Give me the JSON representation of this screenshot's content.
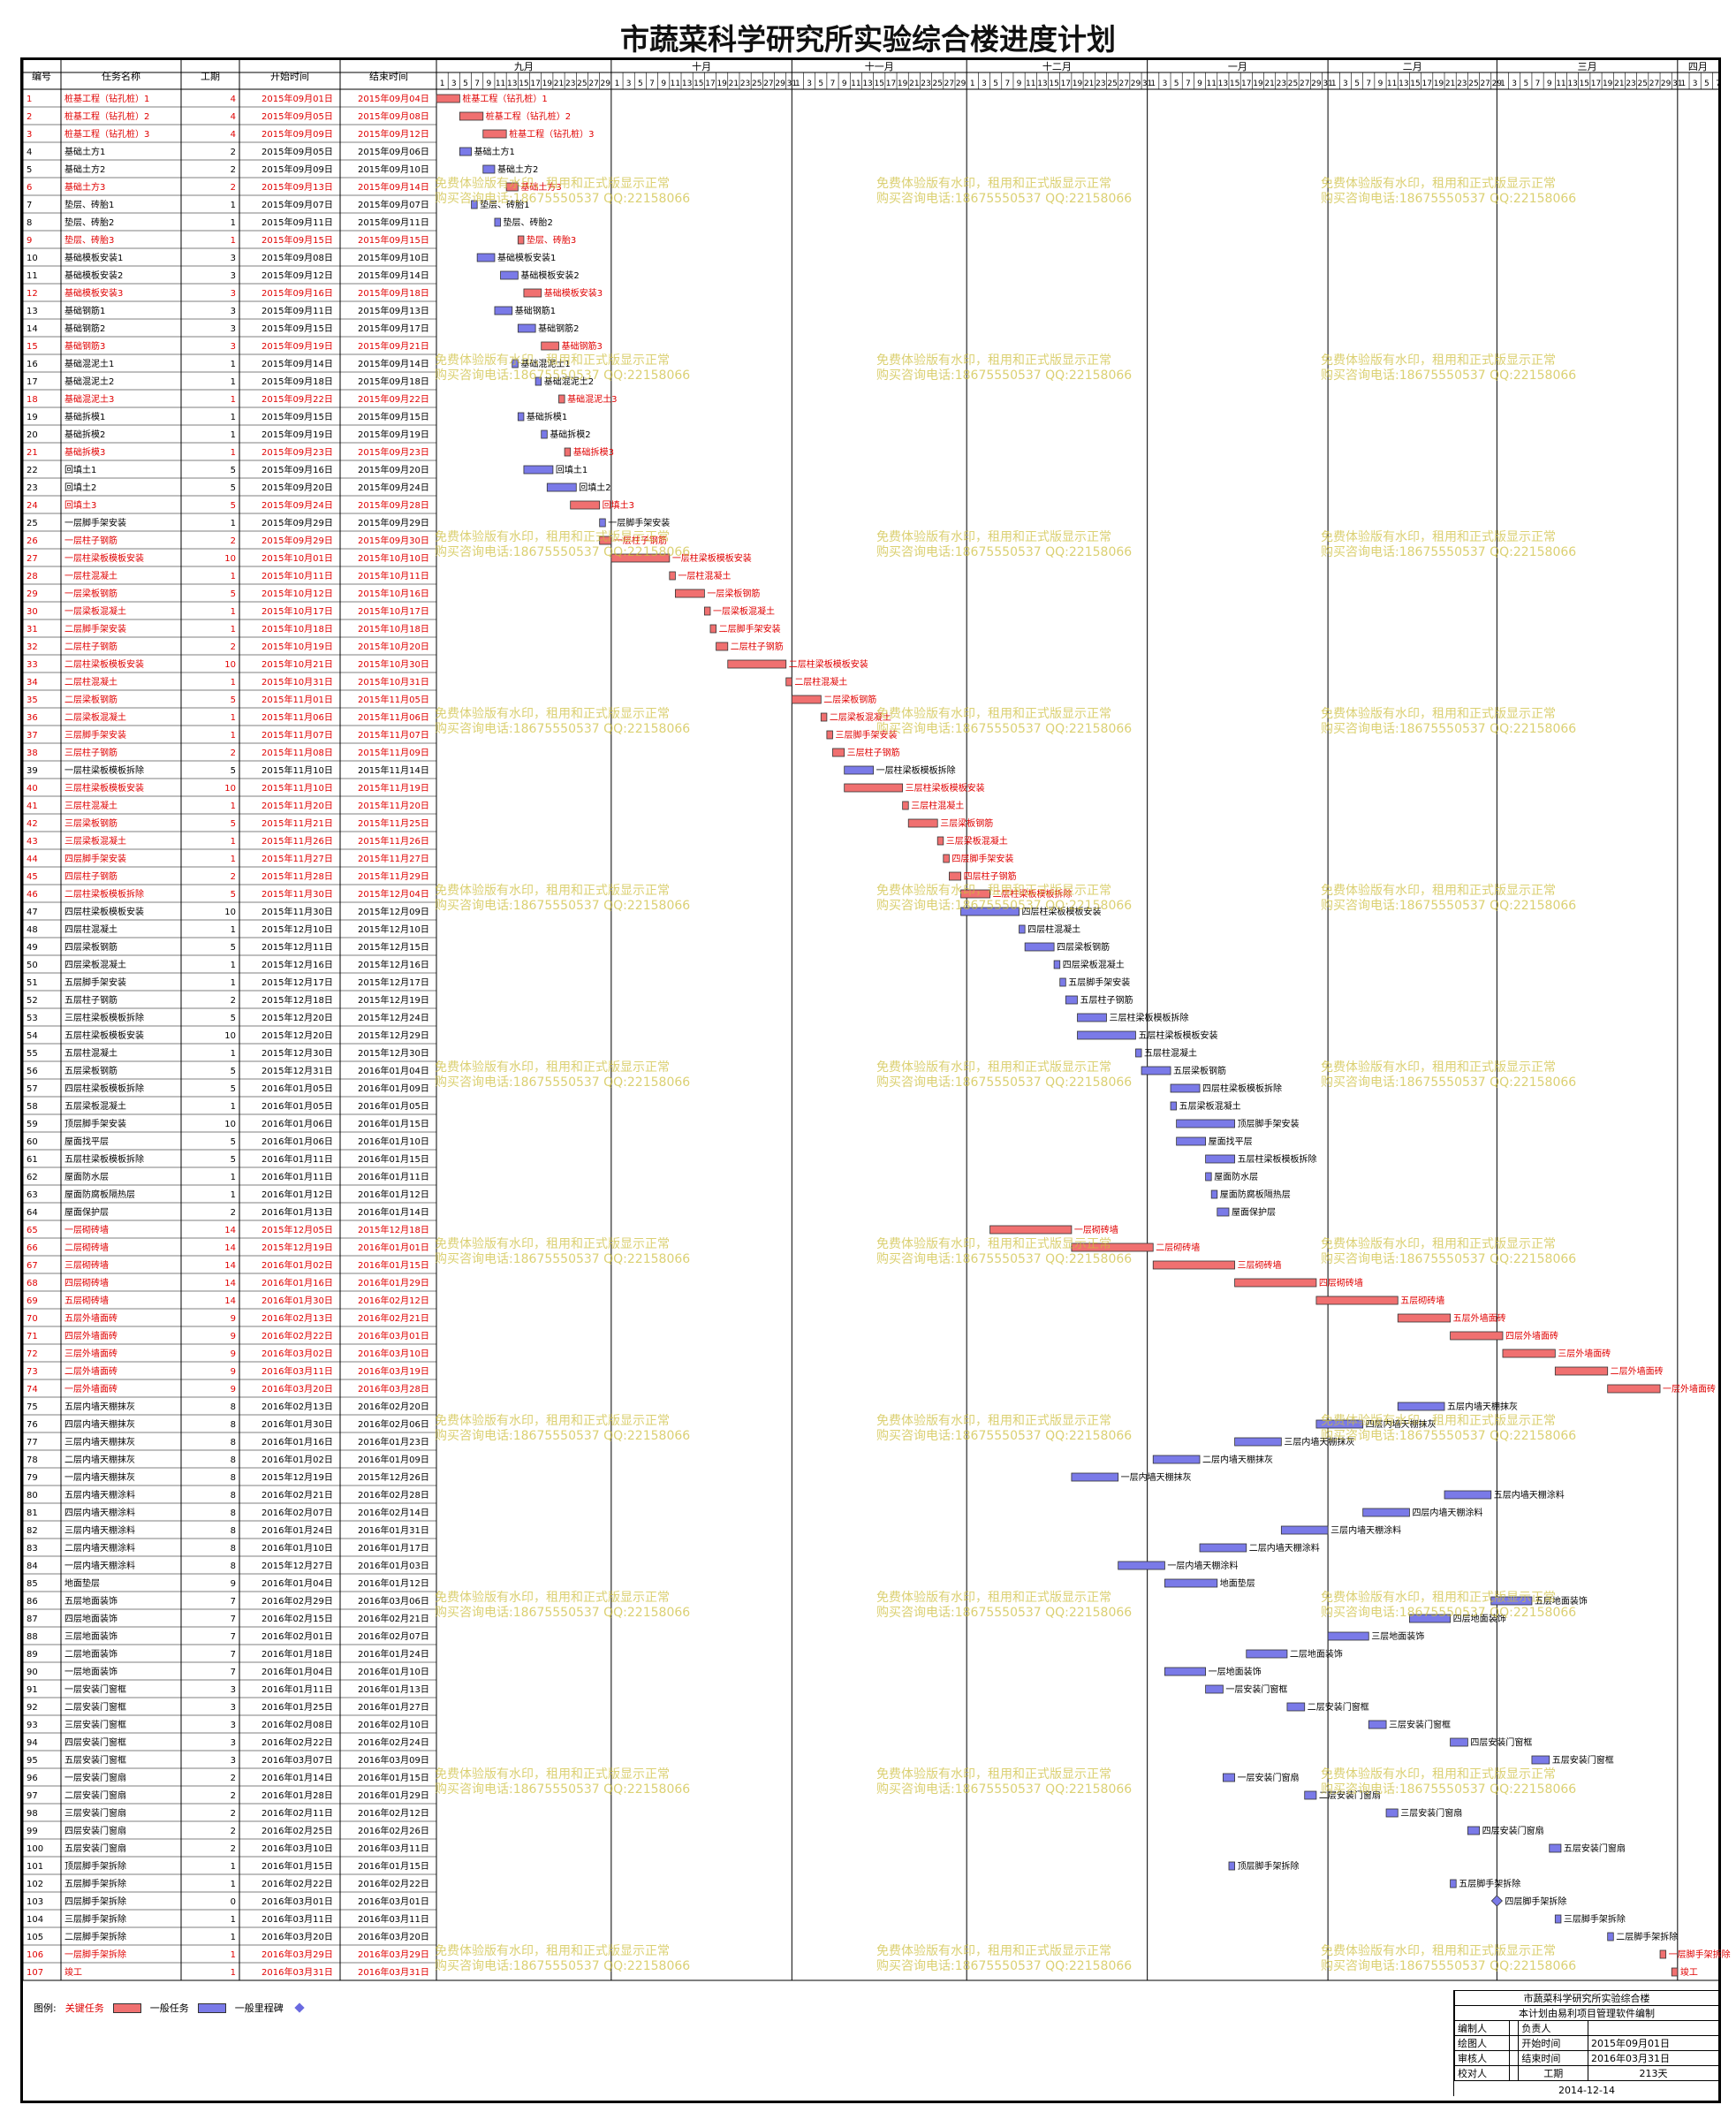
{
  "title": "市蔬菜科学研究所实验综合楼进度计划",
  "table_headers": {
    "id": "编号",
    "name": "任务名称",
    "duration": "工期",
    "start": "开始时间",
    "end": "结束时间"
  },
  "timeline": {
    "months": [
      {
        "label": "九月",
        "start": "2015-09-01",
        "days": 30
      },
      {
        "label": "十月",
        "start": "2015-10-01",
        "days": 31
      },
      {
        "label": "十一月",
        "start": "2015-11-01",
        "days": 30
      },
      {
        "label": "十二月",
        "start": "2015-12-01",
        "days": 31
      },
      {
        "label": "一月",
        "start": "2016-01-01",
        "days": 31
      },
      {
        "label": "二月",
        "start": "2016-02-01",
        "days": 29
      },
      {
        "label": "三月",
        "start": "2016-03-01",
        "days": 31
      },
      {
        "label": "四月",
        "start": "2016-04-01",
        "days": 7
      }
    ]
  },
  "watermark": {
    "line1": "免费体验版有水印，租用和正式版显示正常",
    "line2": "购买咨询电话:18675550537 QQ:22158066"
  },
  "legend": {
    "label": "图例:",
    "critical": "关键任务",
    "normal": "一般任务",
    "milestone": "一般里程碑"
  },
  "footer": {
    "project": "市蔬菜科学研究所实验综合楼",
    "note": "本计划由易利项目管理软件编制",
    "compiler": "编制人",
    "owner": "负责人",
    "drawer": "绘图人",
    "start_label": "开始时间",
    "start_value": "2015年09月01日",
    "reviewer": "审核人",
    "end_label": "结束时间",
    "end_value": "2016年03月31日",
    "checker": "校对人",
    "duration_label": "工期",
    "duration_value": "213天",
    "date": "2014-12-14"
  },
  "colors": {
    "critical": "#f07070",
    "critical_text": "#e00000",
    "normal": "#7a7ae8",
    "normal_text": "#000000"
  },
  "chart_data": {
    "type": "gantt",
    "tasks": [
      {
        "id": 1,
        "name": "桩基工程（钻孔桩）1",
        "dur": 4,
        "start": "2015年09月01日",
        "end": "2015年09月04日",
        "critical": true
      },
      {
        "id": 2,
        "name": "桩基工程（钻孔桩）2",
        "dur": 4,
        "start": "2015年09月05日",
        "end": "2015年09月08日",
        "critical": true
      },
      {
        "id": 3,
        "name": "桩基工程（钻孔桩）3",
        "dur": 4,
        "start": "2015年09月09日",
        "end": "2015年09月12日",
        "critical": true
      },
      {
        "id": 4,
        "name": "基础土方1",
        "dur": 2,
        "start": "2015年09月05日",
        "end": "2015年09月06日",
        "critical": false
      },
      {
        "id": 5,
        "name": "基础土方2",
        "dur": 2,
        "start": "2015年09月09日",
        "end": "2015年09月10日",
        "critical": false
      },
      {
        "id": 6,
        "name": "基础土方3",
        "dur": 2,
        "start": "2015年09月13日",
        "end": "2015年09月14日",
        "critical": true
      },
      {
        "id": 7,
        "name": "垫层、砖胎1",
        "dur": 1,
        "start": "2015年09月07日",
        "end": "2015年09月07日",
        "critical": false
      },
      {
        "id": 8,
        "name": "垫层、砖胎2",
        "dur": 1,
        "start": "2015年09月11日",
        "end": "2015年09月11日",
        "critical": false
      },
      {
        "id": 9,
        "name": "垫层、砖胎3",
        "dur": 1,
        "start": "2015年09月15日",
        "end": "2015年09月15日",
        "critical": true
      },
      {
        "id": 10,
        "name": "基础模板安装1",
        "dur": 3,
        "start": "2015年09月08日",
        "end": "2015年09月10日",
        "critical": false
      },
      {
        "id": 11,
        "name": "基础模板安装2",
        "dur": 3,
        "start": "2015年09月12日",
        "end": "2015年09月14日",
        "critical": false
      },
      {
        "id": 12,
        "name": "基础模板安装3",
        "dur": 3,
        "start": "2015年09月16日",
        "end": "2015年09月18日",
        "critical": true
      },
      {
        "id": 13,
        "name": "基础钢筋1",
        "dur": 3,
        "start": "2015年09月11日",
        "end": "2015年09月13日",
        "critical": false
      },
      {
        "id": 14,
        "name": "基础钢筋2",
        "dur": 3,
        "start": "2015年09月15日",
        "end": "2015年09月17日",
        "critical": false
      },
      {
        "id": 15,
        "name": "基础钢筋3",
        "dur": 3,
        "start": "2015年09月19日",
        "end": "2015年09月21日",
        "critical": true
      },
      {
        "id": 16,
        "name": "基础混泥土1",
        "dur": 1,
        "start": "2015年09月14日",
        "end": "2015年09月14日",
        "critical": false
      },
      {
        "id": 17,
        "name": "基础混泥土2",
        "dur": 1,
        "start": "2015年09月18日",
        "end": "2015年09月18日",
        "critical": false
      },
      {
        "id": 18,
        "name": "基础混泥土3",
        "dur": 1,
        "start": "2015年09月22日",
        "end": "2015年09月22日",
        "critical": true
      },
      {
        "id": 19,
        "name": "基础拆模1",
        "dur": 1,
        "start": "2015年09月15日",
        "end": "2015年09月15日",
        "critical": false
      },
      {
        "id": 20,
        "name": "基础拆模2",
        "dur": 1,
        "start": "2015年09月19日",
        "end": "2015年09月19日",
        "critical": false
      },
      {
        "id": 21,
        "name": "基础拆模3",
        "dur": 1,
        "start": "2015年09月23日",
        "end": "2015年09月23日",
        "critical": true
      },
      {
        "id": 22,
        "name": "回填土1",
        "dur": 5,
        "start": "2015年09月16日",
        "end": "2015年09月20日",
        "critical": false
      },
      {
        "id": 23,
        "name": "回填土2",
        "dur": 5,
        "start": "2015年09月20日",
        "end": "2015年09月24日",
        "critical": false
      },
      {
        "id": 24,
        "name": "回填土3",
        "dur": 5,
        "start": "2015年09月24日",
        "end": "2015年09月28日",
        "critical": true
      },
      {
        "id": 25,
        "name": "一层脚手架安装",
        "dur": 1,
        "start": "2015年09月29日",
        "end": "2015年09月29日",
        "critical": false
      },
      {
        "id": 26,
        "name": "一层柱子钢筋",
        "dur": 2,
        "start": "2015年09月29日",
        "end": "2015年09月30日",
        "critical": true
      },
      {
        "id": 27,
        "name": "一层柱梁板模板安装",
        "dur": 10,
        "start": "2015年10月01日",
        "end": "2015年10月10日",
        "critical": true
      },
      {
        "id": 28,
        "name": "一层柱混凝土",
        "dur": 1,
        "start": "2015年10月11日",
        "end": "2015年10月11日",
        "critical": true
      },
      {
        "id": 29,
        "name": "一层梁板钢筋",
        "dur": 5,
        "start": "2015年10月12日",
        "end": "2015年10月16日",
        "critical": true
      },
      {
        "id": 30,
        "name": "一层梁板混凝土",
        "dur": 1,
        "start": "2015年10月17日",
        "end": "2015年10月17日",
        "critical": true
      },
      {
        "id": 31,
        "name": "二层脚手架安装",
        "dur": 1,
        "start": "2015年10月18日",
        "end": "2015年10月18日",
        "critical": true
      },
      {
        "id": 32,
        "name": "二层柱子钢筋",
        "dur": 2,
        "start": "2015年10月19日",
        "end": "2015年10月20日",
        "critical": true
      },
      {
        "id": 33,
        "name": "二层柱梁板模板安装",
        "dur": 10,
        "start": "2015年10月21日",
        "end": "2015年10月30日",
        "critical": true
      },
      {
        "id": 34,
        "name": "二层柱混凝土",
        "dur": 1,
        "start": "2015年10月31日",
        "end": "2015年10月31日",
        "critical": true
      },
      {
        "id": 35,
        "name": "二层梁板钢筋",
        "dur": 5,
        "start": "2015年11月01日",
        "end": "2015年11月05日",
        "critical": true
      },
      {
        "id": 36,
        "name": "二层梁板混凝土",
        "dur": 1,
        "start": "2015年11月06日",
        "end": "2015年11月06日",
        "critical": true
      },
      {
        "id": 37,
        "name": "三层脚手架安装",
        "dur": 1,
        "start": "2015年11月07日",
        "end": "2015年11月07日",
        "critical": true
      },
      {
        "id": 38,
        "name": "三层柱子钢筋",
        "dur": 2,
        "start": "2015年11月08日",
        "end": "2015年11月09日",
        "critical": true
      },
      {
        "id": 39,
        "name": "一层柱梁板模板拆除",
        "dur": 5,
        "start": "2015年11月10日",
        "end": "2015年11月14日",
        "critical": false
      },
      {
        "id": 40,
        "name": "三层柱梁板模板安装",
        "dur": 10,
        "start": "2015年11月10日",
        "end": "2015年11月19日",
        "critical": true
      },
      {
        "id": 41,
        "name": "三层柱混凝土",
        "dur": 1,
        "start": "2015年11月20日",
        "end": "2015年11月20日",
        "critical": true
      },
      {
        "id": 42,
        "name": "三层梁板钢筋",
        "dur": 5,
        "start": "2015年11月21日",
        "end": "2015年11月25日",
        "critical": true
      },
      {
        "id": 43,
        "name": "三层梁板混凝土",
        "dur": 1,
        "start": "2015年11月26日",
        "end": "2015年11月26日",
        "critical": true
      },
      {
        "id": 44,
        "name": "四层脚手架安装",
        "dur": 1,
        "start": "2015年11月27日",
        "end": "2015年11月27日",
        "critical": true
      },
      {
        "id": 45,
        "name": "四层柱子钢筋",
        "dur": 2,
        "start": "2015年11月28日",
        "end": "2015年11月29日",
        "critical": true
      },
      {
        "id": 46,
        "name": "二层柱梁板模板拆除",
        "dur": 5,
        "start": "2015年11月30日",
        "end": "2015年12月04日",
        "critical": true
      },
      {
        "id": 47,
        "name": "四层柱梁板模板安装",
        "dur": 10,
        "start": "2015年11月30日",
        "end": "2015年12月09日",
        "critical": false
      },
      {
        "id": 48,
        "name": "四层柱混凝土",
        "dur": 1,
        "start": "2015年12月10日",
        "end": "2015年12月10日",
        "critical": false
      },
      {
        "id": 49,
        "name": "四层梁板钢筋",
        "dur": 5,
        "start": "2015年12月11日",
        "end": "2015年12月15日",
        "critical": false
      },
      {
        "id": 50,
        "name": "四层梁板混凝土",
        "dur": 1,
        "start": "2015年12月16日",
        "end": "2015年12月16日",
        "critical": false
      },
      {
        "id": 51,
        "name": "五层脚手架安装",
        "dur": 1,
        "start": "2015年12月17日",
        "end": "2015年12月17日",
        "critical": false
      },
      {
        "id": 52,
        "name": "五层柱子钢筋",
        "dur": 2,
        "start": "2015年12月18日",
        "end": "2015年12月19日",
        "critical": false
      },
      {
        "id": 53,
        "name": "三层柱梁板模板拆除",
        "dur": 5,
        "start": "2015年12月20日",
        "end": "2015年12月24日",
        "critical": false
      },
      {
        "id": 54,
        "name": "五层柱梁板模板安装",
        "dur": 10,
        "start": "2015年12月20日",
        "end": "2015年12月29日",
        "critical": false
      },
      {
        "id": 55,
        "name": "五层柱混凝土",
        "dur": 1,
        "start": "2015年12月30日",
        "end": "2015年12月30日",
        "critical": false
      },
      {
        "id": 56,
        "name": "五层梁板钢筋",
        "dur": 5,
        "start": "2015年12月31日",
        "end": "2016年01月04日",
        "critical": false
      },
      {
        "id": 57,
        "name": "四层柱梁板模板拆除",
        "dur": 5,
        "start": "2016年01月05日",
        "end": "2016年01月09日",
        "critical": false
      },
      {
        "id": 58,
        "name": "五层梁板混凝土",
        "dur": 1,
        "start": "2016年01月05日",
        "end": "2016年01月05日",
        "critical": false
      },
      {
        "id": 59,
        "name": "顶层脚手架安装",
        "dur": 10,
        "start": "2016年01月06日",
        "end": "2016年01月15日",
        "critical": false
      },
      {
        "id": 60,
        "name": "屋面找平层",
        "dur": 5,
        "start": "2016年01月06日",
        "end": "2016年01月10日",
        "critical": false
      },
      {
        "id": 61,
        "name": "五层柱梁板模板拆除",
        "dur": 5,
        "start": "2016年01月11日",
        "end": "2016年01月15日",
        "critical": false
      },
      {
        "id": 62,
        "name": "屋面防水层",
        "dur": 1,
        "start": "2016年01月11日",
        "end": "2016年01月11日",
        "critical": false
      },
      {
        "id": 63,
        "name": "屋面防腐板隔热层",
        "dur": 1,
        "start": "2016年01月12日",
        "end": "2016年01月12日",
        "critical": false
      },
      {
        "id": 64,
        "name": "屋面保护层",
        "dur": 2,
        "start": "2016年01月13日",
        "end": "2016年01月14日",
        "critical": false
      },
      {
        "id": 65,
        "name": "一层砌砖墙",
        "dur": 14,
        "start": "2015年12月05日",
        "end": "2015年12月18日",
        "critical": true
      },
      {
        "id": 66,
        "name": "二层砌砖墙",
        "dur": 14,
        "start": "2015年12月19日",
        "end": "2016年01月01日",
        "critical": true
      },
      {
        "id": 67,
        "name": "三层砌砖墙",
        "dur": 14,
        "start": "2016年01月02日",
        "end": "2016年01月15日",
        "critical": true
      },
      {
        "id": 68,
        "name": "四层砌砖墙",
        "dur": 14,
        "start": "2016年01月16日",
        "end": "2016年01月29日",
        "critical": true
      },
      {
        "id": 69,
        "name": "五层砌砖墙",
        "dur": 14,
        "start": "2016年01月30日",
        "end": "2016年02月12日",
        "critical": true
      },
      {
        "id": 70,
        "name": "五层外墙面砖",
        "dur": 9,
        "start": "2016年02月13日",
        "end": "2016年02月21日",
        "critical": true
      },
      {
        "id": 71,
        "name": "四层外墙面砖",
        "dur": 9,
        "start": "2016年02月22日",
        "end": "2016年03月01日",
        "critical": true
      },
      {
        "id": 72,
        "name": "三层外墙面砖",
        "dur": 9,
        "start": "2016年03月02日",
        "end": "2016年03月10日",
        "critical": true
      },
      {
        "id": 73,
        "name": "二层外墙面砖",
        "dur": 9,
        "start": "2016年03月11日",
        "end": "2016年03月19日",
        "critical": true
      },
      {
        "id": 74,
        "name": "一层外墙面砖",
        "dur": 9,
        "start": "2016年03月20日",
        "end": "2016年03月28日",
        "critical": true
      },
      {
        "id": 75,
        "name": "五层内墙天棚抹灰",
        "dur": 8,
        "start": "2016年02月13日",
        "end": "2016年02月20日",
        "critical": false
      },
      {
        "id": 76,
        "name": "四层内墙天棚抹灰",
        "dur": 8,
        "start": "2016年01月30日",
        "end": "2016年02月06日",
        "critical": false
      },
      {
        "id": 77,
        "name": "三层内墙天棚抹灰",
        "dur": 8,
        "start": "2016年01月16日",
        "end": "2016年01月23日",
        "critical": false
      },
      {
        "id": 78,
        "name": "二层内墙天棚抹灰",
        "dur": 8,
        "start": "2016年01月02日",
        "end": "2016年01月09日",
        "critical": false
      },
      {
        "id": 79,
        "name": "一层内墙天棚抹灰",
        "dur": 8,
        "start": "2015年12月19日",
        "end": "2015年12月26日",
        "critical": false
      },
      {
        "id": 80,
        "name": "五层内墙天棚涂料",
        "dur": 8,
        "start": "2016年02月21日",
        "end": "2016年02月28日",
        "critical": false
      },
      {
        "id": 81,
        "name": "四层内墙天棚涂料",
        "dur": 8,
        "start": "2016年02月07日",
        "end": "2016年02月14日",
        "critical": false
      },
      {
        "id": 82,
        "name": "三层内墙天棚涂料",
        "dur": 8,
        "start": "2016年01月24日",
        "end": "2016年01月31日",
        "critical": false
      },
      {
        "id": 83,
        "name": "二层内墙天棚涂料",
        "dur": 8,
        "start": "2016年01月10日",
        "end": "2016年01月17日",
        "critical": false
      },
      {
        "id": 84,
        "name": "一层内墙天棚涂料",
        "dur": 8,
        "start": "2015年12月27日",
        "end": "2016年01月03日",
        "critical": false
      },
      {
        "id": 85,
        "name": "地面垫层",
        "dur": 9,
        "start": "2016年01月04日",
        "end": "2016年01月12日",
        "critical": false
      },
      {
        "id": 86,
        "name": "五层地面装饰",
        "dur": 7,
        "start": "2016年02月29日",
        "end": "2016年03月06日",
        "critical": false
      },
      {
        "id": 87,
        "name": "四层地面装饰",
        "dur": 7,
        "start": "2016年02月15日",
        "end": "2016年02月21日",
        "critical": false
      },
      {
        "id": 88,
        "name": "三层地面装饰",
        "dur": 7,
        "start": "2016年02月01日",
        "end": "2016年02月07日",
        "critical": false
      },
      {
        "id": 89,
        "name": "二层地面装饰",
        "dur": 7,
        "start": "2016年01月18日",
        "end": "2016年01月24日",
        "critical": false
      },
      {
        "id": 90,
        "name": "一层地面装饰",
        "dur": 7,
        "start": "2016年01月04日",
        "end": "2016年01月10日",
        "critical": false
      },
      {
        "id": 91,
        "name": "一层安装门窗框",
        "dur": 3,
        "start": "2016年01月11日",
        "end": "2016年01月13日",
        "critical": false
      },
      {
        "id": 92,
        "name": "二层安装门窗框",
        "dur": 3,
        "start": "2016年01月25日",
        "end": "2016年01月27日",
        "critical": false
      },
      {
        "id": 93,
        "name": "三层安装门窗框",
        "dur": 3,
        "start": "2016年02月08日",
        "end": "2016年02月10日",
        "critical": false
      },
      {
        "id": 94,
        "name": "四层安装门窗框",
        "dur": 3,
        "start": "2016年02月22日",
        "end": "2016年02月24日",
        "critical": false
      },
      {
        "id": 95,
        "name": "五层安装门窗框",
        "dur": 3,
        "start": "2016年03月07日",
        "end": "2016年03月09日",
        "critical": false
      },
      {
        "id": 96,
        "name": "一层安装门窗扇",
        "dur": 2,
        "start": "2016年01月14日",
        "end": "2016年01月15日",
        "critical": false
      },
      {
        "id": 97,
        "name": "二层安装门窗扇",
        "dur": 2,
        "start": "2016年01月28日",
        "end": "2016年01月29日",
        "critical": false
      },
      {
        "id": 98,
        "name": "三层安装门窗扇",
        "dur": 2,
        "start": "2016年02月11日",
        "end": "2016年02月12日",
        "critical": false
      },
      {
        "id": 99,
        "name": "四层安装门窗扇",
        "dur": 2,
        "start": "2016年02月25日",
        "end": "2016年02月26日",
        "critical": false
      },
      {
        "id": 100,
        "name": "五层安装门窗扇",
        "dur": 2,
        "start": "2016年03月10日",
        "end": "2016年03月11日",
        "critical": false
      },
      {
        "id": 101,
        "name": "顶层脚手架拆除",
        "dur": 1,
        "start": "2016年01月15日",
        "end": "2016年01月15日",
        "critical": false
      },
      {
        "id": 102,
        "name": "五层脚手架拆除",
        "dur": 1,
        "start": "2016年02月22日",
        "end": "2016年02月22日",
        "critical": false
      },
      {
        "id": 103,
        "name": "四层脚手架拆除",
        "dur": 0,
        "start": "2016年03月01日",
        "end": "2016年03月01日",
        "critical": false
      },
      {
        "id": 104,
        "name": "三层脚手架拆除",
        "dur": 1,
        "start": "2016年03月11日",
        "end": "2016年03月11日",
        "critical": false
      },
      {
        "id": 105,
        "name": "二层脚手架拆除",
        "dur": 1,
        "start": "2016年03月20日",
        "end": "2016年03月20日",
        "critical": false
      },
      {
        "id": 106,
        "name": "一层脚手架拆除",
        "dur": 1,
        "start": "2016年03月29日",
        "end": "2016年03月29日",
        "critical": true
      },
      {
        "id": 107,
        "name": "竣工",
        "dur": 1,
        "start": "2016年03月31日",
        "end": "2016年03月31日",
        "critical": true
      }
    ]
  }
}
